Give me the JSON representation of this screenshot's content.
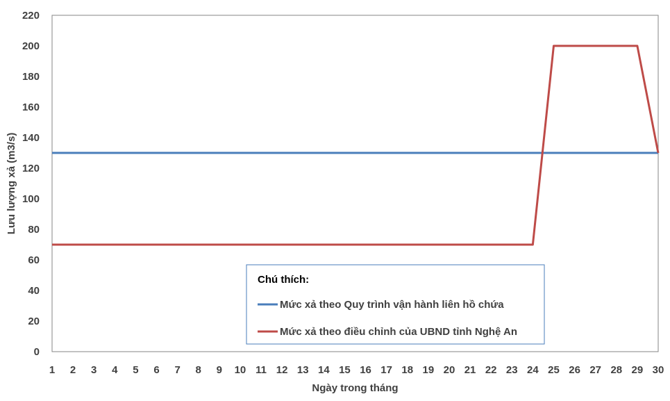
{
  "chart_data": {
    "type": "line",
    "xlabel": "Ngày trong tháng",
    "ylabel": "Lưu lượng xả (m3/s)",
    "x": [
      1,
      2,
      3,
      4,
      5,
      6,
      7,
      8,
      9,
      10,
      11,
      12,
      13,
      14,
      15,
      16,
      17,
      18,
      19,
      20,
      21,
      22,
      23,
      24,
      25,
      26,
      27,
      28,
      29,
      30
    ],
    "ylim": [
      0,
      220
    ],
    "yticks": [
      0,
      20,
      40,
      60,
      80,
      100,
      120,
      140,
      160,
      180,
      200,
      220
    ],
    "grid": false,
    "legend_title": "Chú thích:",
    "legend_placement": "bottom-center",
    "series": [
      {
        "name": "Mức xả theo Quy trình vận hành liên hồ chứa",
        "color": "#4a7ebb",
        "values": [
          130,
          130,
          130,
          130,
          130,
          130,
          130,
          130,
          130,
          130,
          130,
          130,
          130,
          130,
          130,
          130,
          130,
          130,
          130,
          130,
          130,
          130,
          130,
          130,
          130,
          130,
          130,
          130,
          130,
          130
        ]
      },
      {
        "name": "Mức xả theo điều chỉnh của UBND tỉnh Nghệ An",
        "color": "#be4b48",
        "values": [
          70,
          70,
          70,
          70,
          70,
          70,
          70,
          70,
          70,
          70,
          70,
          70,
          70,
          70,
          70,
          70,
          70,
          70,
          70,
          70,
          70,
          70,
          70,
          70,
          200,
          200,
          200,
          200,
          200,
          130
        ]
      }
    ]
  }
}
